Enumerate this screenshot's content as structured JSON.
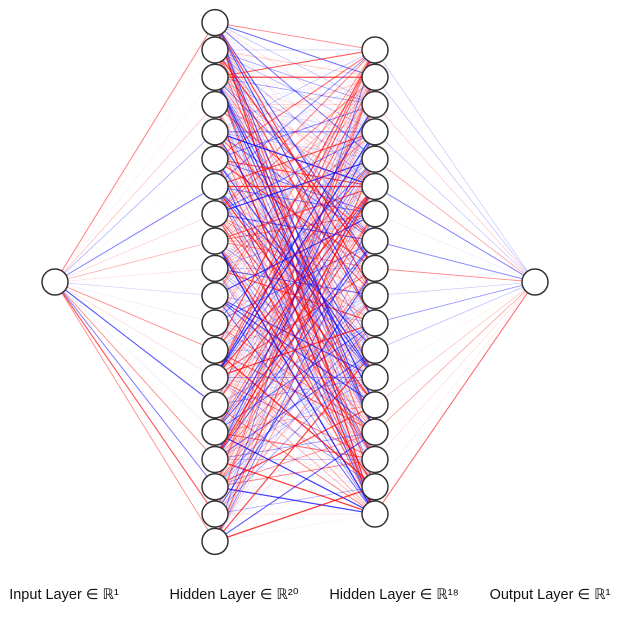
{
  "diagram": {
    "layers": [
      {
        "label": "Input Layer ∈ ℝ¹",
        "size": 1
      },
      {
        "label": "Hidden Layer ∈ ℝ²⁰",
        "size": 20
      },
      {
        "label": "Hidden Layer ∈ ℝ¹⁸",
        "size": 18
      },
      {
        "label": "Output Layer ∈ ℝ¹",
        "size": 1
      }
    ],
    "colors": {
      "positive_edge": "#ff0000",
      "negative_edge": "#0000ff",
      "node_stroke": "#333333",
      "node_fill": "#ffffff"
    }
  }
}
